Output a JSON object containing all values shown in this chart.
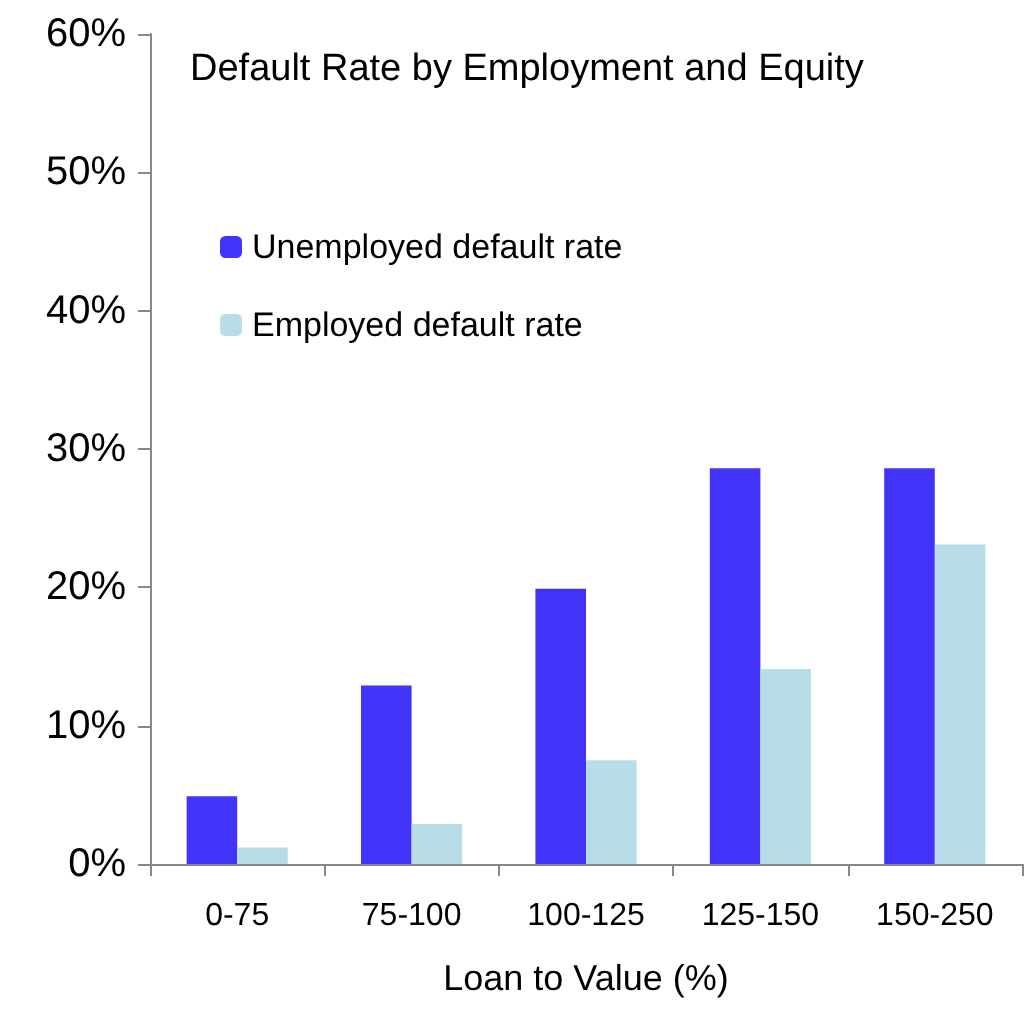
{
  "chart_data": {
    "type": "bar",
    "title": "Default Rate by Employment and Equity",
    "xlabel": "Loan to Value (%)",
    "categories": [
      "0-75",
      "75-100",
      "100-125",
      "125-150",
      "150-250"
    ],
    "series": [
      {
        "name": "Unemployed default rate",
        "color": "#4133f7",
        "values": [
          4.9,
          12.9,
          19.9,
          28.6,
          28.6
        ]
      },
      {
        "name": "Employed default rate",
        "color": "#b7dde8",
        "values": [
          1.2,
          2.9,
          7.5,
          14.1,
          23.1
        ]
      }
    ],
    "ylim": [
      0,
      60
    ],
    "yticks": [
      {
        "value": 0,
        "label": "0%"
      },
      {
        "value": 10,
        "label": "10%"
      },
      {
        "value": 20,
        "label": "20%"
      },
      {
        "value": 30,
        "label": "30%"
      },
      {
        "value": 40,
        "label": "40%"
      },
      {
        "value": 50,
        "label": "50%"
      },
      {
        "value": 60,
        "label": "60%"
      }
    ],
    "grid": false,
    "legend": "top left"
  }
}
